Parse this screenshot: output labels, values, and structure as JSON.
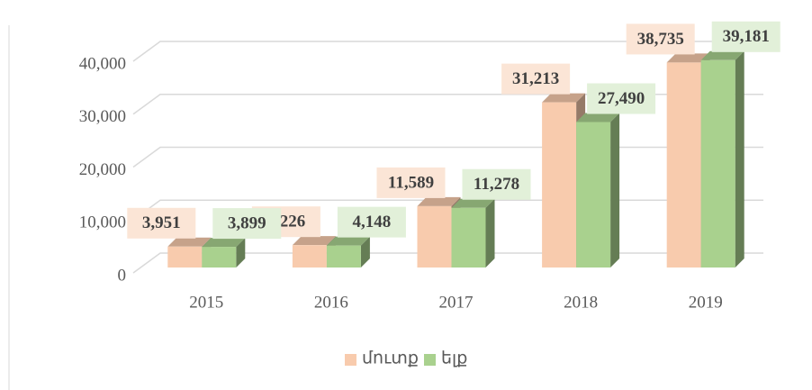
{
  "chart_data": {
    "type": "bar3d",
    "categories": [
      "2015",
      "2016",
      "2017",
      "2018",
      "2019"
    ],
    "series": [
      {
        "name": "մուտք",
        "color": "#f8cbad",
        "label_color": "#fbe5d6",
        "values": [
          3951,
          4226,
          11589,
          31213,
          38735
        ],
        "value_labels": [
          "3,951",
          "4,226",
          "11,589",
          "31,213",
          "38,735"
        ]
      },
      {
        "name": "ելք",
        "color": "#a9d18e",
        "label_color": "#e2f0d9",
        "values": [
          3899,
          4148,
          11278,
          27490,
          39181
        ],
        "value_labels": [
          "3,899",
          "4,148",
          "11,278",
          "27,490",
          "39,181"
        ]
      }
    ],
    "ylim": [
      0,
      40000
    ],
    "yticks": [
      {
        "value": 0,
        "label": "0"
      },
      {
        "value": 10000,
        "label": "10,000"
      },
      {
        "value": 20000,
        "label": "20,000"
      },
      {
        "value": 30000,
        "label": "30,000"
      },
      {
        "value": 40000,
        "label": "40,000"
      }
    ],
    "grid": true,
    "legend": "bottom"
  }
}
